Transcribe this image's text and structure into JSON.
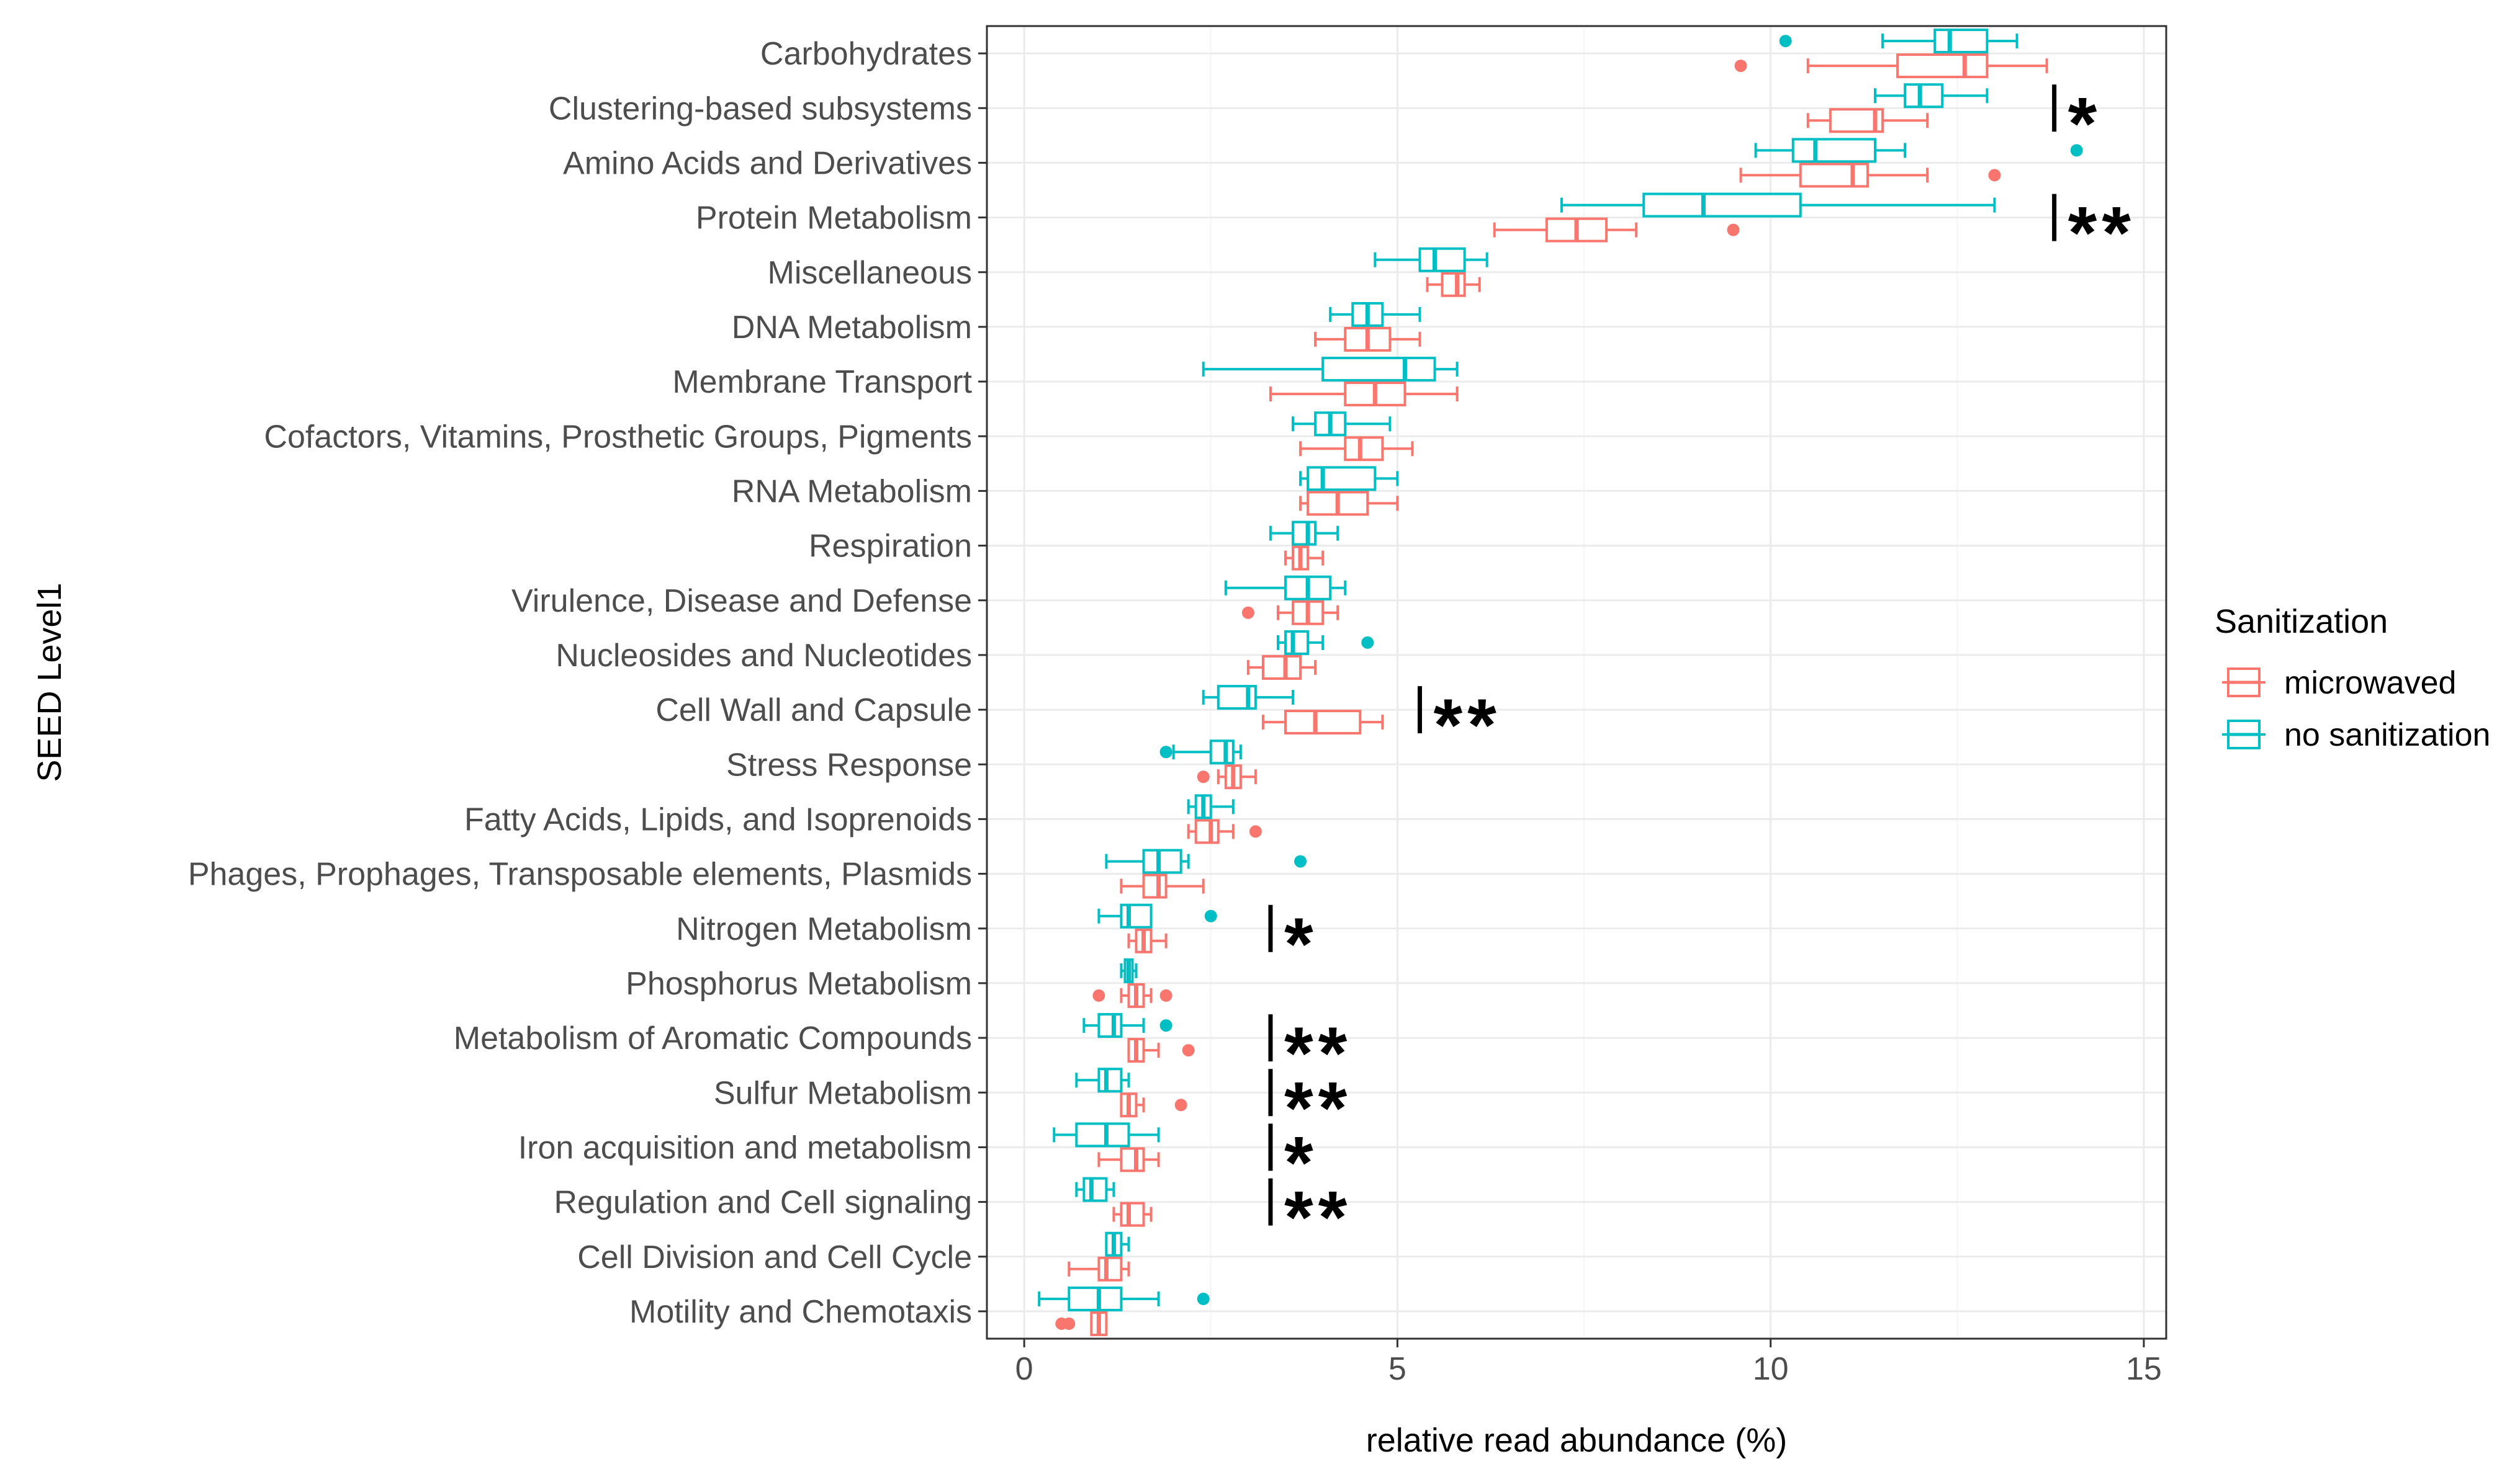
{
  "chart_data": {
    "type": "boxplot",
    "xlabel": "relative read abundance (%)",
    "ylabel": "SEED Level1",
    "xlim": [
      -0.5,
      15.3
    ],
    "x_ticks": [
      0,
      5,
      10,
      15
    ],
    "grid": true,
    "legend": {
      "title": "Sanitization",
      "position": "right",
      "entries": [
        {
          "name": "microwaved",
          "color": "#F8766D"
        },
        {
          "name": "no sanitization",
          "color": "#00BFC4"
        }
      ]
    },
    "groups": [
      "microwaved",
      "no sanitization"
    ],
    "colors": {
      "microwaved": "#F8766D",
      "no sanitization": "#00BFC4"
    },
    "categories": [
      "Carbohydrates",
      "Clustering-based subsystems",
      "Amino Acids and Derivatives",
      "Protein Metabolism",
      "Miscellaneous",
      "DNA Metabolism",
      "Membrane Transport",
      "Cofactors, Vitamins, Prosthetic Groups, Pigments",
      "RNA Metabolism",
      "Respiration",
      "Virulence, Disease and Defense",
      "Nucleosides and Nucleotides",
      "Cell Wall and Capsule",
      "Stress Response",
      "Fatty Acids, Lipids, and Isoprenoids",
      "Phages, Prophages, Transposable elements, Plasmids",
      "Nitrogen Metabolism",
      "Phosphorus Metabolism",
      "Metabolism of Aromatic Compounds",
      "Sulfur Metabolism",
      "Iron acquisition and metabolism",
      "Regulation and Cell signaling",
      "Cell Division and Cell Cycle",
      "Motility and Chemotaxis"
    ],
    "series": [
      {
        "name": "microwaved",
        "boxes": [
          {
            "min": 10.5,
            "q1": 11.7,
            "median": 12.6,
            "q3": 12.9,
            "max": 13.7,
            "outliers": [
              9.6
            ]
          },
          {
            "min": 10.5,
            "q1": 10.8,
            "median": 11.4,
            "q3": 11.5,
            "max": 12.1,
            "outliers": []
          },
          {
            "min": 9.6,
            "q1": 10.4,
            "median": 11.1,
            "q3": 11.3,
            "max": 12.1,
            "outliers": [
              13.0
            ]
          },
          {
            "min": 6.3,
            "q1": 7.0,
            "median": 7.4,
            "q3": 7.8,
            "max": 8.2,
            "outliers": [
              9.5
            ]
          },
          {
            "min": 5.4,
            "q1": 5.6,
            "median": 5.8,
            "q3": 5.9,
            "max": 6.1,
            "outliers": []
          },
          {
            "min": 3.9,
            "q1": 4.3,
            "median": 4.6,
            "q3": 4.9,
            "max": 5.3,
            "outliers": []
          },
          {
            "min": 3.3,
            "q1": 4.3,
            "median": 4.7,
            "q3": 5.1,
            "max": 5.8,
            "outliers": []
          },
          {
            "min": 3.7,
            "q1": 4.3,
            "median": 4.5,
            "q3": 4.8,
            "max": 5.2,
            "outliers": []
          },
          {
            "min": 3.7,
            "q1": 3.8,
            "median": 4.2,
            "q3": 4.6,
            "max": 5.0,
            "outliers": []
          },
          {
            "min": 3.5,
            "q1": 3.6,
            "median": 3.7,
            "q3": 3.8,
            "max": 4.0,
            "outliers": []
          },
          {
            "min": 3.4,
            "q1": 3.6,
            "median": 3.8,
            "q3": 4.0,
            "max": 4.2,
            "outliers": [
              3.0
            ]
          },
          {
            "min": 3.0,
            "q1": 3.2,
            "median": 3.5,
            "q3": 3.7,
            "max": 3.9,
            "outliers": []
          },
          {
            "min": 3.2,
            "q1": 3.5,
            "median": 3.9,
            "q3": 4.5,
            "max": 4.8,
            "outliers": []
          },
          {
            "min": 2.6,
            "q1": 2.7,
            "median": 2.8,
            "q3": 2.9,
            "max": 3.1,
            "outliers": [
              2.4
            ]
          },
          {
            "min": 2.2,
            "q1": 2.3,
            "median": 2.5,
            "q3": 2.6,
            "max": 2.8,
            "outliers": [
              3.1
            ]
          },
          {
            "min": 1.3,
            "q1": 1.6,
            "median": 1.8,
            "q3": 1.9,
            "max": 2.4,
            "outliers": []
          },
          {
            "min": 1.4,
            "q1": 1.5,
            "median": 1.6,
            "q3": 1.7,
            "max": 1.9,
            "outliers": []
          },
          {
            "min": 1.3,
            "q1": 1.4,
            "median": 1.5,
            "q3": 1.6,
            "max": 1.7,
            "outliers": [
              1.0,
              1.9
            ]
          },
          {
            "min": 1.4,
            "q1": 1.4,
            "median": 1.5,
            "q3": 1.6,
            "max": 1.8,
            "outliers": [
              2.2
            ]
          },
          {
            "min": 1.3,
            "q1": 1.3,
            "median": 1.4,
            "q3": 1.5,
            "max": 1.6,
            "outliers": [
              2.1
            ]
          },
          {
            "min": 1.0,
            "q1": 1.3,
            "median": 1.5,
            "q3": 1.6,
            "max": 1.8,
            "outliers": []
          },
          {
            "min": 1.2,
            "q1": 1.3,
            "median": 1.4,
            "q3": 1.6,
            "max": 1.7,
            "outliers": []
          },
          {
            "min": 0.6,
            "q1": 1.0,
            "median": 1.1,
            "q3": 1.3,
            "max": 1.4,
            "outliers": []
          },
          {
            "min": 0.9,
            "q1": 0.9,
            "median": 1.0,
            "q3": 1.1,
            "max": 1.1,
            "outliers": [
              0.5,
              0.6
            ]
          }
        ]
      },
      {
        "name": "no sanitization",
        "boxes": [
          {
            "min": 11.5,
            "q1": 12.2,
            "median": 12.4,
            "q3": 12.9,
            "max": 13.3,
            "outliers": [
              10.2
            ]
          },
          {
            "min": 11.4,
            "q1": 11.8,
            "median": 12.0,
            "q3": 12.3,
            "max": 12.9,
            "outliers": []
          },
          {
            "min": 9.8,
            "q1": 10.3,
            "median": 10.6,
            "q3": 11.4,
            "max": 11.8,
            "outliers": [
              14.1
            ]
          },
          {
            "min": 7.2,
            "q1": 8.3,
            "median": 9.1,
            "q3": 10.4,
            "max": 13.0,
            "outliers": []
          },
          {
            "min": 4.7,
            "q1": 5.3,
            "median": 5.5,
            "q3": 5.9,
            "max": 6.2,
            "outliers": []
          },
          {
            "min": 4.1,
            "q1": 4.4,
            "median": 4.6,
            "q3": 4.8,
            "max": 5.3,
            "outliers": []
          },
          {
            "min": 2.4,
            "q1": 4.0,
            "median": 5.1,
            "q3": 5.5,
            "max": 5.8,
            "outliers": []
          },
          {
            "min": 3.6,
            "q1": 3.9,
            "median": 4.1,
            "q3": 4.3,
            "max": 4.9,
            "outliers": []
          },
          {
            "min": 3.7,
            "q1": 3.8,
            "median": 4.0,
            "q3": 4.7,
            "max": 5.0,
            "outliers": []
          },
          {
            "min": 3.3,
            "q1": 3.6,
            "median": 3.8,
            "q3": 3.9,
            "max": 4.2,
            "outliers": []
          },
          {
            "min": 2.7,
            "q1": 3.5,
            "median": 3.8,
            "q3": 4.1,
            "max": 4.3,
            "outliers": []
          },
          {
            "min": 3.4,
            "q1": 3.5,
            "median": 3.6,
            "q3": 3.8,
            "max": 4.0,
            "outliers": [
              4.6
            ]
          },
          {
            "min": 2.4,
            "q1": 2.6,
            "median": 3.0,
            "q3": 3.1,
            "max": 3.6,
            "outliers": []
          },
          {
            "min": 2.0,
            "q1": 2.5,
            "median": 2.7,
            "q3": 2.8,
            "max": 2.9,
            "outliers": [
              1.9
            ]
          },
          {
            "min": 2.2,
            "q1": 2.3,
            "median": 2.4,
            "q3": 2.5,
            "max": 2.8,
            "outliers": []
          },
          {
            "min": 1.1,
            "q1": 1.6,
            "median": 1.8,
            "q3": 2.1,
            "max": 2.2,
            "outliers": [
              3.7
            ]
          },
          {
            "min": 1.0,
            "q1": 1.3,
            "median": 1.4,
            "q3": 1.7,
            "max": 1.7,
            "outliers": [
              2.5
            ]
          },
          {
            "min": 1.3,
            "q1": 1.35,
            "median": 1.4,
            "q3": 1.45,
            "max": 1.5,
            "outliers": []
          },
          {
            "min": 0.8,
            "q1": 1.0,
            "median": 1.2,
            "q3": 1.3,
            "max": 1.6,
            "outliers": [
              1.9
            ]
          },
          {
            "min": 0.7,
            "q1": 1.0,
            "median": 1.1,
            "q3": 1.3,
            "max": 1.4,
            "outliers": []
          },
          {
            "min": 0.4,
            "q1": 0.7,
            "median": 1.1,
            "q3": 1.4,
            "max": 1.8,
            "outliers": []
          },
          {
            "min": 0.7,
            "q1": 0.8,
            "median": 0.9,
            "q3": 1.1,
            "max": 1.2,
            "outliers": []
          },
          {
            "min": 1.1,
            "q1": 1.1,
            "median": 1.2,
            "q3": 1.3,
            "max": 1.4,
            "outliers": []
          },
          {
            "min": 0.2,
            "q1": 0.6,
            "median": 1.0,
            "q3": 1.3,
            "max": 1.8,
            "outliers": [
              2.4
            ]
          }
        ]
      }
    ],
    "annotations": [
      {
        "category": "Clustering-based subsystems",
        "text": "*",
        "x": 13.8
      },
      {
        "category": "Protein Metabolism",
        "text": "**",
        "x": 13.8
      },
      {
        "category": "Cell Wall and Capsule",
        "text": "**",
        "x": 5.3
      },
      {
        "category": "Nitrogen Metabolism",
        "text": "*",
        "x": 3.3
      },
      {
        "category": "Metabolism of Aromatic Compounds",
        "text": "**",
        "x": 3.3
      },
      {
        "category": "Sulfur Metabolism",
        "text": "**",
        "x": 3.3
      },
      {
        "category": "Iron acquisition and metabolism",
        "text": "*",
        "x": 3.3
      },
      {
        "category": "Regulation and Cell signaling",
        "text": "**",
        "x": 3.3
      }
    ]
  }
}
